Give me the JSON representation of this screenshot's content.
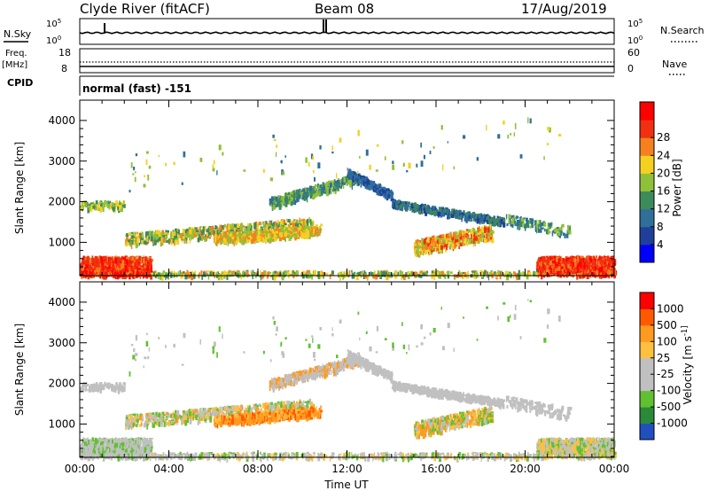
{
  "header": {
    "station": "Clyde River (fitACF)",
    "beam": "Beam 08",
    "date": "17/Aug/2019"
  },
  "noise_panel": {
    "left_label": "N.Sky",
    "right_label": "N.Search",
    "left_ticks": [
      "10^5",
      "10^0"
    ],
    "right_ticks": [
      "10^5",
      "10^0"
    ]
  },
  "freq_panel": {
    "left_label_1": "Freq.",
    "left_label_2": "[MHz]",
    "right_label": "Nave",
    "left_ticks": [
      "18",
      "8"
    ],
    "right_ticks": [
      "60",
      "0"
    ]
  },
  "cpid": {
    "label": "CPID",
    "value": "normal (fast) -151"
  },
  "colors": {
    "power_scale": [
      "#0000ff",
      "#1f3f9a",
      "#2f6f9a",
      "#3d8a5a",
      "#8fc03a",
      "#f4d020",
      "#f48020",
      "#f03010",
      "#ff0000"
    ],
    "velocity_scale": [
      "#ff0000",
      "#ff5a00",
      "#ff9a20",
      "#ffc040",
      "#c0c0c0",
      "#c0c0c0",
      "#60c030",
      "#2a8a3a",
      "#2050c0"
    ]
  },
  "chart_data": [
    {
      "type": "heatmap",
      "name": "power",
      "xlabel": "",
      "ylabel": "Slant Range [km]",
      "xlim_hours": [
        0,
        24
      ],
      "ylim_km": [
        180,
        4500
      ],
      "x_ticks": [
        "00:00",
        "04:00",
        "08:00",
        "12:00",
        "16:00",
        "20:00",
        "00:00"
      ],
      "y_ticks": [
        1000,
        2000,
        3000,
        4000
      ],
      "colorbar": {
        "label": "Power [dB]",
        "ticks": [
          "4",
          "8",
          "12",
          "16",
          "20",
          "24",
          "28"
        ],
        "range": [
          0,
          30
        ]
      }
    },
    {
      "type": "heatmap",
      "name": "velocity",
      "xlabel": "Time UT",
      "ylabel": "Slant Range [km]",
      "xlim_hours": [
        0,
        24
      ],
      "ylim_km": [
        180,
        4500
      ],
      "x_ticks": [
        "00:00",
        "04:00",
        "08:00",
        "12:00",
        "16:00",
        "20:00",
        "00:00"
      ],
      "y_ticks": [
        1000,
        2000,
        3000,
        4000
      ],
      "colorbar": {
        "label": "Velocity [m s^-1]",
        "ticks": [
          "1000",
          "500",
          "100",
          "25",
          "-25",
          "-100",
          "-500",
          "-1000"
        ]
      }
    }
  ]
}
